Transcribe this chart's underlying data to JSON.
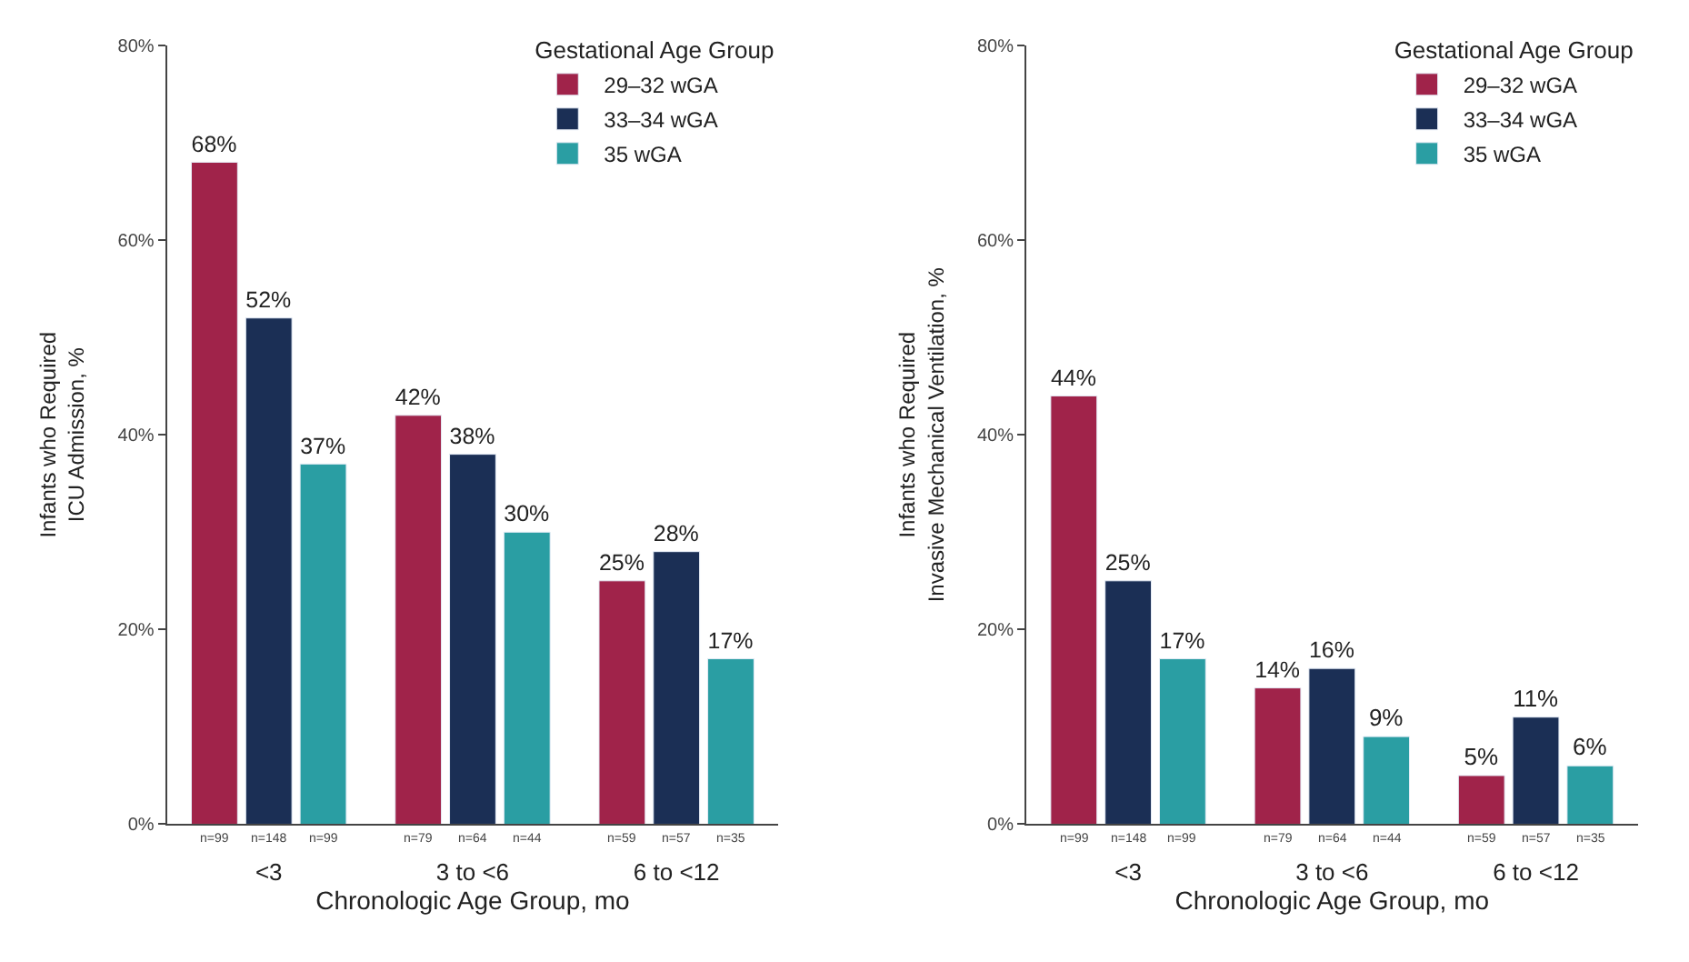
{
  "chart_data": [
    {
      "type": "bar",
      "xlabel": "Chronologic Age Group, mo",
      "ylabel": "Infants who Required\nICU Admission, %",
      "legend_title": "Gestational Age Group",
      "legend": "top right",
      "categories": [
        "<3",
        "3 to <6",
        "6 to <12"
      ],
      "series": [
        {
          "name": "29–32 wGA",
          "color": "#a0234a",
          "values": [
            68,
            42,
            25
          ],
          "value_labels": [
            "68%",
            "42%",
            "25%"
          ]
        },
        {
          "name": "33–34 wGA",
          "color": "#1b2f55",
          "values": [
            52,
            38,
            28
          ],
          "value_labels": [
            "52%",
            "38%",
            "28%"
          ]
        },
        {
          "name": "35 wGA",
          "color": "#2a9ea3",
          "values": [
            37,
            30,
            17
          ],
          "value_labels": [
            "37%",
            "30%",
            "17%"
          ]
        }
      ],
      "ylim": [
        0,
        80
      ],
      "yticks": [
        {
          "value": 0,
          "label": "0%"
        },
        {
          "value": 20,
          "label": "20%"
        },
        {
          "value": 40,
          "label": "40%"
        },
        {
          "value": 60,
          "label": "60%"
        },
        {
          "value": 80,
          "label": "80%"
        }
      ],
      "annotations": [
        "n=99",
        "n=148",
        "n=99",
        "n=79",
        "n=64",
        "n=44",
        "n=59",
        "n=57",
        "n=35"
      ]
    },
    {
      "type": "bar",
      "xlabel": "Chronologic Age Group, mo",
      "ylabel": "Infants who Required\nInvasive Mechanical Ventilation, %",
      "legend_title": "Gestational Age Group",
      "legend": "top right",
      "categories": [
        "<3",
        "3 to <6",
        "6 to <12"
      ],
      "series": [
        {
          "name": "29–32 wGA",
          "color": "#a0234a",
          "values": [
            44,
            14,
            5
          ],
          "value_labels": [
            "44%",
            "14%",
            "5%"
          ]
        },
        {
          "name": "33–34 wGA",
          "color": "#1b2f55",
          "values": [
            25,
            16,
            11
          ],
          "value_labels": [
            "25%",
            "16%",
            "11%"
          ]
        },
        {
          "name": "35 wGA",
          "color": "#2a9ea3",
          "values": [
            17,
            9,
            6
          ],
          "value_labels": [
            "17%",
            "9%",
            "6%"
          ]
        }
      ],
      "ylim": [
        0,
        80
      ],
      "yticks": [
        {
          "value": 0,
          "label": "0%"
        },
        {
          "value": 20,
          "label": "20%"
        },
        {
          "value": 40,
          "label": "40%"
        },
        {
          "value": 60,
          "label": "60%"
        },
        {
          "value": 80,
          "label": "80%"
        }
      ],
      "annotations": [
        "n=99",
        "n=148",
        "n=99",
        "n=79",
        "n=64",
        "n=44",
        "n=59",
        "n=57",
        "n=35"
      ]
    }
  ]
}
